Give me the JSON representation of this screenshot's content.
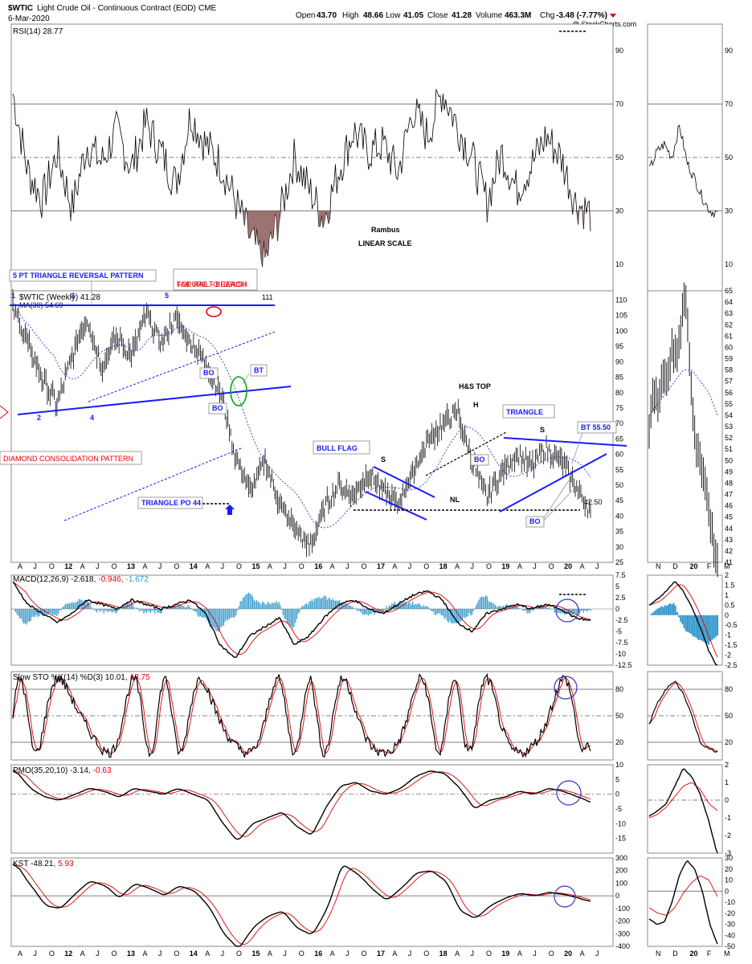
{
  "header": {
    "symbol": "$WTIC",
    "description": "Light Crude Oil - Continuous Contract (EOD)",
    "exchange": "CME",
    "date": "6-Mar-2020",
    "open_label": "Open",
    "open": "43.70",
    "high_label": "High",
    "high": "48.66",
    "low_label": "Low",
    "low": "41.05",
    "close_label": "Close",
    "close": "41.28",
    "volume_label": "Volume",
    "volume": "463.3M",
    "chg_label": "Chg",
    "chg": "-3.48 (-7.77%)",
    "watermark": "@ StockCharts.com"
  },
  "annotations": {
    "rambus": "Rambus",
    "linear_scale": "LINEAR SCALE",
    "five_pt": "5 PT TRIANGLE REVERSAL PATTERN",
    "failure_1": "FAILURE TO REACH",
    "failure_2": "TOP RAIL - BEARISH",
    "diamond": "DIAMOND CONSOLIDATION PATTERN",
    "triangle_po": "TRIANGLE PO 44",
    "bull_flag": "BULL FLAG",
    "hs_top": "H&S TOP",
    "h": "H",
    "s_left": "S",
    "s_right": "S",
    "nl": "NL",
    "triangle": "TRIANGLE",
    "bt_5550": "BT 55.50",
    "bt": "BT",
    "bo1": "BO",
    "bo2": "BO",
    "bo3": "BO",
    "bo4": "BO",
    "price_4250": "42.50",
    "price_111": "111",
    "pt1": "1",
    "pt2": "2",
    "pt3": "3",
    "pt4": "4",
    "pt5": "5"
  },
  "x_axis_main": [
    "A",
    "J",
    "O",
    "12",
    "A",
    "J",
    "O",
    "13",
    "A",
    "J",
    "O",
    "14",
    "A",
    "J",
    "O",
    "15",
    "A",
    "J",
    "O",
    "16",
    "A",
    "J",
    "O",
    "17",
    "A",
    "J",
    "O",
    "18",
    "A",
    "J",
    "O",
    "19",
    "A",
    "J",
    "O",
    "20",
    "A",
    "J"
  ],
  "x_axis_right": [
    "N",
    "D",
    "20",
    "F",
    "M"
  ],
  "chart_data": [
    {
      "type": "line",
      "name": "RSI(14)",
      "label_text": "RSI(14) 28.77",
      "ylim": [
        0,
        100
      ],
      "ticks": [
        10,
        30,
        50,
        70,
        90
      ],
      "reference_lines": [
        30,
        50,
        70
      ],
      "last": 28.77
    },
    {
      "type": "bar",
      "name": "$WTIC (Weekly)",
      "label_text": "$WTIC (Weekly) 41.28",
      "ma_label": "MA(30) 54.69",
      "ylim": [
        25,
        113
      ],
      "ticks": [
        25,
        30,
        35,
        40,
        45,
        50,
        55,
        60,
        65,
        70,
        75,
        80,
        85,
        90,
        95,
        100,
        105,
        110
      ],
      "right_ylim": [
        41,
        65
      ],
      "right_ticks": [
        41,
        42,
        43,
        44,
        45,
        46,
        47,
        48,
        49,
        50,
        51,
        52,
        53,
        54,
        55,
        56,
        57,
        58,
        59,
        60,
        61,
        62,
        63,
        64,
        65
      ],
      "close": 41.28,
      "ma30": 54.69
    },
    {
      "type": "line",
      "name": "MACD(12,26,9)",
      "label_parts": [
        "MACD(12,26,9) -2.618,",
        "-0.946,",
        "-1.672"
      ],
      "ylim": [
        -12.5,
        7.5
      ],
      "ticks": [
        7.5,
        5.0,
        2.5,
        0.0,
        -2.5,
        -5.0,
        -7.5,
        -10.0,
        -12.5
      ],
      "right_ylim": [
        -2.5,
        2.0
      ],
      "right_ticks": [
        2.0,
        1.5,
        1.0,
        0.5,
        0.0,
        -0.5,
        -1.0,
        -1.5,
        -2.0,
        -2.5
      ],
      "values": [
        -2.618,
        -0.946,
        -1.672
      ]
    },
    {
      "type": "line",
      "name": "Slow STO %K(14) %D(3)",
      "label_parts": [
        "Slow STO %K(14) %D(3) 10.01,",
        "13.75"
      ],
      "ylim": [
        0,
        100
      ],
      "ticks": [
        20,
        50,
        80
      ],
      "reference_lines": [
        20,
        50,
        80
      ],
      "values": [
        10.01,
        13.75
      ]
    },
    {
      "type": "line",
      "name": "PMO(35,20,10)",
      "label_parts": [
        "PMO(35,20,10) -3.14,",
        "-0.63"
      ],
      "ylim": [
        -20,
        10
      ],
      "ticks": [
        10,
        5,
        0,
        -5,
        -10,
        -15
      ],
      "right_ylim": [
        -3,
        2
      ],
      "right_ticks": [
        2,
        1,
        0,
        -1,
        -2,
        -3
      ],
      "values": [
        -3.14,
        -0.63
      ]
    },
    {
      "type": "line",
      "name": "KST",
      "label_parts": [
        "KST -48.21,",
        "5.93"
      ],
      "ylim": [
        -400,
        300
      ],
      "ticks": [
        300,
        200,
        100,
        0,
        -100,
        -200,
        -300,
        -400
      ],
      "right_ylim": [
        -50,
        30
      ],
      "right_ticks": [
        30,
        20,
        10,
        0,
        -10,
        -20,
        -30,
        -40,
        -50
      ],
      "values": [
        -48.21,
        5.93
      ]
    }
  ],
  "colors": {
    "price": "#000000",
    "ma": "#3333cc",
    "signal": "#e00000",
    "histogram": "#3399cc",
    "rsi_fill_low": "#8b5a5a",
    "rsi_fill_high": "#2e8b57",
    "trendline": "#1a1aff",
    "annotation_red": "#e00000",
    "circle_green": "#00aa00"
  }
}
